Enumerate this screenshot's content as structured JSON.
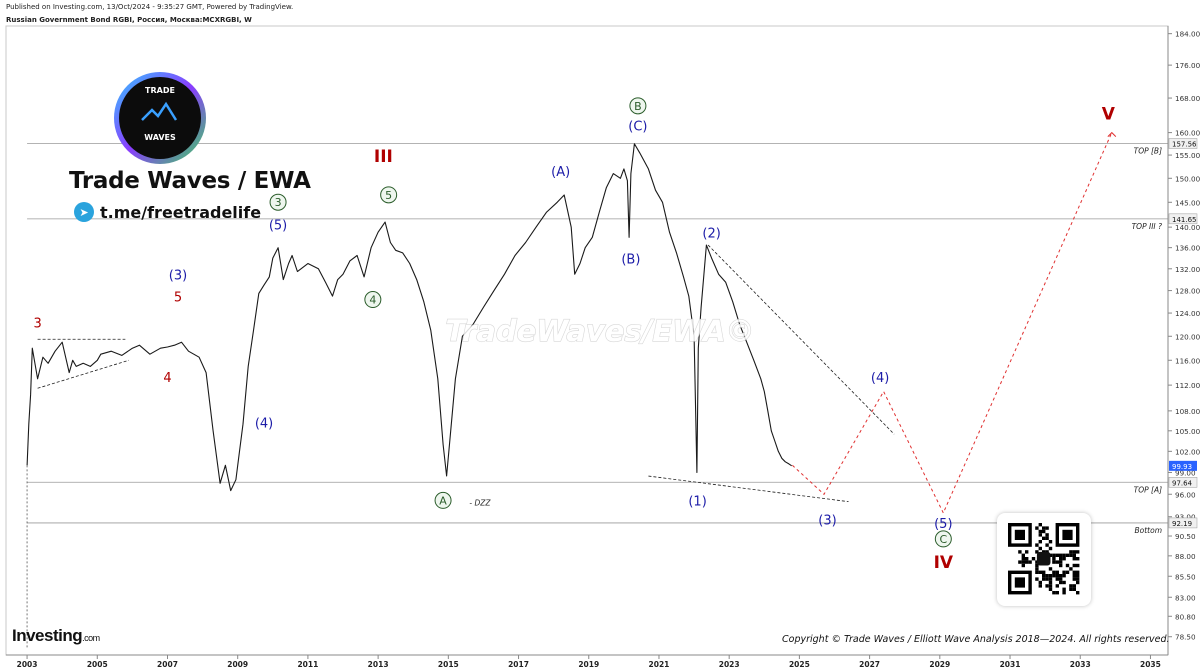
{
  "header": {
    "published": "Published on Investing.com, 13/Oct/2024 - 9:35:27 GMT, Powered by TradingView.",
    "instrument": "Russian Government Bond RGBI, Россия, Москва:MCXRGBI, W"
  },
  "branding": {
    "logo_top": "TRADE",
    "logo_bottom": "WAVES",
    "name": "Trade Waves / EWA",
    "telegram": "t.me/freetradelife",
    "watermark": "TradeWaves/EWA©",
    "copyright": "Copyright © Trade Waves / Elliott Wave Analysis 2018—2024. All rights reserved.",
    "investing_logo": "Investing",
    "investing_suffix": ".com"
  },
  "colors": {
    "price": "#1a1a1a",
    "wave_red": "#b00000",
    "wave_blue": "#1c1ca8",
    "wave_green": "#2a5c2a",
    "projection": "#e03030",
    "level_line": "#9a9a9a",
    "price_tag": "#2962ff"
  },
  "chart_data": {
    "type": "line",
    "title": "Russian Government Bond RGBI, Россия, Москва:MCXRGBI, W",
    "timeframe": "W",
    "xlim": [
      2002.4,
      2035.5
    ],
    "ylim": [
      76.5,
      186
    ],
    "y_scale": "log",
    "x_ticks": [
      "2003",
      "2005",
      "2007",
      "2009",
      "2011",
      "2013",
      "2015",
      "2017",
      "2019",
      "2021",
      "2023",
      "2025",
      "2027",
      "2029",
      "2031",
      "2033",
      "2035"
    ],
    "y_ticks": [
      "184.00",
      "176.00",
      "168.00",
      "160.00",
      "155.00",
      "150.00",
      "145.00",
      "140.00",
      "136.00",
      "132.00",
      "128.00",
      "124.00",
      "120.00",
      "116.00",
      "112.00",
      "108.00",
      "105.00",
      "102.00",
      "99.00",
      "96.00",
      "93.00",
      "90.50",
      "88.00",
      "85.50",
      "83.00",
      "80.80",
      "78.50"
    ],
    "price_series": {
      "name": "RGBI",
      "x": [
        2003.0,
        2003.05,
        2003.1,
        2003.15,
        2003.3,
        2003.45,
        2003.6,
        2003.8,
        2004.0,
        2004.2,
        2004.3,
        2004.4,
        2004.6,
        2004.8,
        2005.0,
        2005.1,
        2005.4,
        2005.7,
        2006.0,
        2006.2,
        2006.5,
        2006.8,
        2007.0,
        2007.2,
        2007.4,
        2007.6,
        2007.9,
        2008.1,
        2008.3,
        2008.5,
        2008.65,
        2008.8,
        2008.95,
        2009.05,
        2009.15,
        2009.3,
        2009.45,
        2009.6,
        2009.75,
        2009.9,
        2010.0,
        2010.15,
        2010.3,
        2010.45,
        2010.55,
        2010.7,
        2011.0,
        2011.3,
        2011.5,
        2011.7,
        2011.85,
        2012.0,
        2012.2,
        2012.4,
        2012.6,
        2012.8,
        2013.0,
        2013.2,
        2013.35,
        2013.5,
        2013.7,
        2013.9,
        2014.1,
        2014.3,
        2014.5,
        2014.7,
        2014.85,
        2014.95,
        2015.05,
        2015.2,
        2015.4,
        2015.7,
        2016.0,
        2016.3,
        2016.6,
        2016.9,
        2017.2,
        2017.5,
        2017.8,
        2018.1,
        2018.3,
        2018.5,
        2018.6,
        2018.75,
        2018.9,
        2019.1,
        2019.3,
        2019.5,
        2019.7,
        2019.9,
        2020.0,
        2020.1,
        2020.15,
        2020.2,
        2020.3,
        2020.45,
        2020.7,
        2020.9,
        2021.1,
        2021.3,
        2021.5,
        2021.7,
        2021.85,
        2022.0,
        2022.08,
        2022.12,
        2022.2,
        2022.35,
        2022.5,
        2022.7,
        2022.9,
        2023.1,
        2023.3,
        2023.5,
        2023.7,
        2023.9,
        2024.0,
        2024.1,
        2024.2,
        2024.3,
        2024.4,
        2024.5,
        2024.6,
        2024.7,
        2024.78
      ],
      "y": [
        100.0,
        106.0,
        110.5,
        118.0,
        113.0,
        116.5,
        115.5,
        117.5,
        119.0,
        114.0,
        116.0,
        115.0,
        115.5,
        115.0,
        116.0,
        117.0,
        117.5,
        116.8,
        118.0,
        118.5,
        117.0,
        118.0,
        118.2,
        118.5,
        119.0,
        117.5,
        116.5,
        114.0,
        105.0,
        97.5,
        100.0,
        96.5,
        98.0,
        102.0,
        106.0,
        115.0,
        121.0,
        127.5,
        129.0,
        130.5,
        134.0,
        136.0,
        130.0,
        133.0,
        134.5,
        131.5,
        133.0,
        132.0,
        129.5,
        127.0,
        130.0,
        131.0,
        133.5,
        134.5,
        130.5,
        136.0,
        139.0,
        141.0,
        137.0,
        135.5,
        135.0,
        133.0,
        130.0,
        126.0,
        121.0,
        113.0,
        103.0,
        98.5,
        104.0,
        113.0,
        120.0,
        122.0,
        125.0,
        128.0,
        131.0,
        134.5,
        137.0,
        140.0,
        143.0,
        145.0,
        146.5,
        140.0,
        131.0,
        133.0,
        136.0,
        138.0,
        143.0,
        148.0,
        151.0,
        150.0,
        152.0,
        149.5,
        138.0,
        151.0,
        157.5,
        155.5,
        152.0,
        147.5,
        145.0,
        139.0,
        135.0,
        130.5,
        127.0,
        120.0,
        99.0,
        118.0,
        125.0,
        136.5,
        134.0,
        131.0,
        129.5,
        126.0,
        122.0,
        119.0,
        116.0,
        113.0,
        111.0,
        108.0,
        105.0,
        103.5,
        102.0,
        101.0,
        100.5,
        100.2,
        99.93
      ]
    },
    "horizontal_levels": [
      {
        "label": "TOP [B]",
        "value": 157.56
      },
      {
        "label": "TOP III ?",
        "value": 141.65
      },
      {
        "label": "TOP [A]",
        "value": 97.64
      },
      {
        "label": "Bottom",
        "value": 92.19
      }
    ],
    "last_price": 99.93,
    "wave_labels": [
      {
        "text": "3",
        "x": 2003.3,
        "y": 121.5,
        "color": "red",
        "style": "plain"
      },
      {
        "text": "4",
        "x": 2007.0,
        "y": 112.5,
        "color": "red",
        "style": "plain"
      },
      {
        "text": "5",
        "x": 2007.3,
        "y": 126.0,
        "color": "red",
        "style": "plain"
      },
      {
        "text": "(3)",
        "x": 2007.3,
        "y": 130.0,
        "color": "blue",
        "style": "plain"
      },
      {
        "text": "(4)",
        "x": 2009.75,
        "y": 105.5,
        "color": "blue",
        "style": "plain"
      },
      {
        "text": "3",
        "x": 2010.15,
        "y": 144.0,
        "color": "green",
        "style": "circled"
      },
      {
        "text": "(5)",
        "x": 2010.15,
        "y": 139.5,
        "color": "blue",
        "style": "plain"
      },
      {
        "text": "4",
        "x": 2012.85,
        "y": 125.5,
        "color": "green",
        "style": "circled"
      },
      {
        "text": "III",
        "x": 2013.15,
        "y": 153.5,
        "color": "red",
        "style": "roman"
      },
      {
        "text": "5",
        "x": 2013.3,
        "y": 145.5,
        "color": "green",
        "style": "circled"
      },
      {
        "text": "A",
        "x": 2014.85,
        "y": 94.5,
        "color": "green",
        "style": "circled"
      },
      {
        "text": "- DZZ",
        "x": 2015.6,
        "y": 94.5,
        "color": "black",
        "style": "note"
      },
      {
        "text": "(A)",
        "x": 2018.2,
        "y": 150.5,
        "color": "blue",
        "style": "plain"
      },
      {
        "text": "(B)",
        "x": 2020.2,
        "y": 133.0,
        "color": "blue",
        "style": "plain"
      },
      {
        "text": "B",
        "x": 2020.4,
        "y": 165.0,
        "color": "green",
        "style": "circled"
      },
      {
        "text": "(C)",
        "x": 2020.4,
        "y": 160.5,
        "color": "blue",
        "style": "plain"
      },
      {
        "text": "(1)",
        "x": 2022.1,
        "y": 94.5,
        "color": "blue",
        "style": "plain"
      },
      {
        "text": "(2)",
        "x": 2022.5,
        "y": 138.0,
        "color": "blue",
        "style": "plain"
      },
      {
        "text": "(3)",
        "x": 2025.8,
        "y": 92.0,
        "color": "blue",
        "style": "plain"
      },
      {
        "text": "(4)",
        "x": 2027.3,
        "y": 112.5,
        "color": "blue",
        "style": "plain"
      },
      {
        "text": "(5)",
        "x": 2029.1,
        "y": 91.5,
        "color": "blue",
        "style": "plain"
      },
      {
        "text": "C",
        "x": 2029.1,
        "y": 89.5,
        "color": "green",
        "style": "circled"
      },
      {
        "text": "IV",
        "x": 2029.1,
        "y": 86.5,
        "color": "red",
        "style": "roman"
      },
      {
        "text": "V",
        "x": 2033.8,
        "y": 163.0,
        "color": "red",
        "style": "roman"
      }
    ],
    "projection_path": {
      "x": [
        2024.8,
        2025.7,
        2027.4,
        2029.1,
        2033.9
      ],
      "y": [
        100.0,
        96.0,
        111.0,
        93.5,
        160.0
      ]
    },
    "trend_lines": [
      {
        "x": [
          2022.4,
          2027.7
        ],
        "y": [
          136.5,
          104.5
        ]
      },
      {
        "x": [
          2020.7,
          2026.4
        ],
        "y": [
          98.5,
          95.0
        ]
      },
      {
        "x": [
          2003.3,
          2005.8
        ],
        "y": [
          119.5,
          119.5
        ]
      },
      {
        "x": [
          2003.3,
          2005.9
        ],
        "y": [
          111.5,
          116.0
        ]
      }
    ]
  }
}
